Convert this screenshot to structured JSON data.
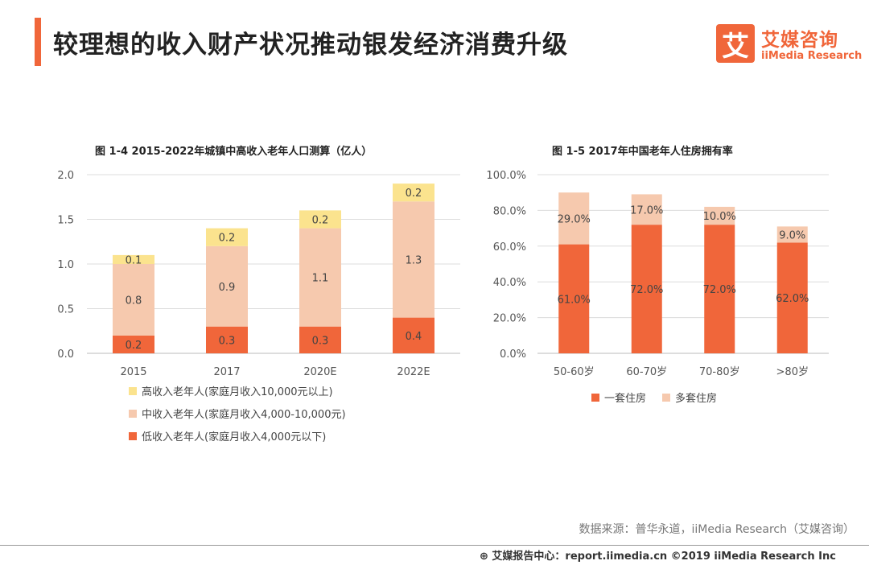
{
  "page_title": "较理想的收入财产状况推动银发经济消费升级",
  "logo": {
    "mark": "艾",
    "name_cn": "艾媒咨询",
    "name_en": "iiMedia Research"
  },
  "source_note": "数据来源：普华永道，iiMedia Research（艾媒咨询）",
  "footer_text": "⊕ 艾媒报告中心：report.iimedia.cn ©2019 iiMedia Research Inc",
  "colors": {
    "accent": "#f0663a",
    "high": "#fbe38e",
    "mid": "#f6c9ae",
    "low": "#f0663a",
    "multi": "#f6c9ae"
  },
  "chart_data": [
    {
      "type": "bar",
      "stacked": true,
      "title": "图 1-4 2015-2022年城镇中高收入老年人口测算（亿人）",
      "categories": [
        "2015",
        "2017",
        "2020E",
        "2022E"
      ],
      "ylim": [
        0,
        2.0
      ],
      "yticks": [
        "0.0",
        "0.5",
        "1.0",
        "1.5",
        "2.0"
      ],
      "grid": true,
      "legend_position": "bottom",
      "series": [
        {
          "name": "低收入老年人(家庭月收入4,000元以下)",
          "values": [
            0.2,
            0.3,
            0.3,
            0.4
          ],
          "labels": [
            "0.2",
            "0.3",
            "0.3",
            "0.4"
          ]
        },
        {
          "name": "中收入老年人(家庭月收入4,000-10,000元)",
          "values": [
            0.8,
            0.9,
            1.1,
            1.3
          ],
          "labels": [
            "0.8",
            "0.9",
            "1.1",
            "1.3"
          ]
        },
        {
          "name": "高收入老年人(家庭月收入10,000元以上)",
          "values": [
            0.1,
            0.2,
            0.2,
            0.2
          ],
          "labels": [
            "0.1",
            "0.2",
            "0.2",
            "0.2"
          ]
        }
      ],
      "legend_order": [
        2,
        1,
        0
      ]
    },
    {
      "type": "bar",
      "stacked": true,
      "title": "图 1-5 2017年中国老年人住房拥有率",
      "categories": [
        "50-60岁",
        "60-70岁",
        "70-80岁",
        ">80岁"
      ],
      "ylim": [
        0,
        100
      ],
      "yticks": [
        "0.0%",
        "20.0%",
        "40.0%",
        "60.0%",
        "80.0%",
        "100.0%"
      ],
      "grid": true,
      "legend_position": "bottom",
      "series": [
        {
          "name": "一套住房",
          "values": [
            61.0,
            72.0,
            72.0,
            62.0
          ],
          "labels": [
            "61.0%",
            "72.0%",
            "72.0%",
            "62.0%"
          ]
        },
        {
          "name": "多套住房",
          "values": [
            29.0,
            17.0,
            10.0,
            9.0
          ],
          "labels": [
            "29.0%",
            "17.0%",
            "10.0%",
            "9.0%"
          ]
        }
      ],
      "legend_order": [
        0,
        1
      ]
    }
  ]
}
